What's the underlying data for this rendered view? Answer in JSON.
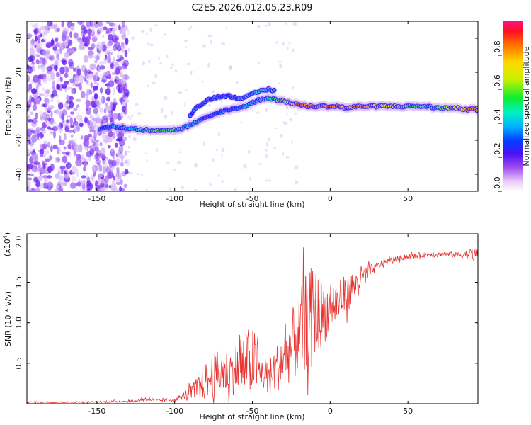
{
  "chart_data": [
    {
      "type": "heatmap",
      "title": "C2E5.2026.012.05.23.R09",
      "xlabel": "Height of straight line (km)",
      "ylabel": "Frequency (Hz)",
      "xlim": [
        -195,
        95
      ],
      "ylim": [
        -50,
        50
      ],
      "xticks": [
        -150,
        -100,
        -50,
        0,
        50
      ],
      "yticks": [
        -40,
        -20,
        0,
        20,
        40
      ],
      "colorbar": {
        "label": "Normalized spectral amplitude",
        "range": [
          0,
          1
        ],
        "ticks": [
          0.0,
          0.2,
          0.4,
          0.6,
          0.8
        ]
      },
      "ridge": {
        "name": "main spectral line",
        "x": [
          -148,
          -140,
          -130,
          -120,
          -110,
          -100,
          -95,
          -90,
          -85,
          -80,
          -75,
          -70,
          -65,
          -60,
          -55,
          -50,
          -45,
          -40,
          -35,
          -30,
          -25,
          -20,
          -15,
          -10,
          -5,
          0,
          5,
          10,
          20,
          30,
          40,
          50,
          60,
          70,
          80,
          90,
          95
        ],
        "y": [
          -13,
          -12,
          -13,
          -14,
          -14,
          -14,
          -13,
          -11,
          -9,
          -7,
          -5,
          -3,
          -2,
          -1,
          0,
          2,
          4,
          5,
          4,
          3,
          2,
          1,
          0,
          0,
          0,
          0,
          0,
          -1,
          0,
          0,
          0,
          0,
          0,
          -1,
          -1,
          -2,
          -2
        ],
        "amplitude": [
          0.3,
          0.35,
          0.4,
          0.5,
          0.55,
          0.5,
          0.45,
          0.35,
          0.35,
          0.3,
          0.3,
          0.3,
          0.3,
          0.3,
          0.35,
          0.35,
          0.4,
          0.45,
          0.55,
          0.65,
          0.75,
          0.85,
          0.9,
          0.9,
          0.85,
          0.9,
          0.85,
          0.8,
          0.85,
          0.75,
          0.65,
          0.55,
          0.5,
          0.55,
          0.65,
          0.85,
          0.8
        ]
      },
      "secondary_branch": {
        "name": "upper branch",
        "x": [
          -90,
          -85,
          -80,
          -75,
          -70,
          -65,
          -60,
          -55,
          -50,
          -45,
          -40,
          -35
        ],
        "y": [
          -5,
          0,
          3,
          5,
          6,
          6,
          5,
          5,
          7,
          9,
          10,
          9
        ],
        "amplitude": [
          0.3,
          0.3,
          0.3,
          0.3,
          0.3,
          0.3,
          0.3,
          0.35,
          0.4,
          0.45,
          0.4,
          0.35
        ]
      }
    },
    {
      "type": "line",
      "xlabel": "Height of straight line (km)",
      "ylabel": "SNR (10 * v/v)",
      "y_multiplier": "(x10",
      "y_multiplier_exp": "4",
      "xlim": [
        -195,
        95
      ],
      "ylim": [
        0,
        2.1
      ],
      "xticks": [
        -150,
        -100,
        -50,
        0,
        50
      ],
      "yticks": [
        0.5,
        1.0,
        1.5,
        2.0
      ],
      "color": "#e8322e",
      "series": [
        {
          "name": "SNR",
          "x": [
            -195,
            -150,
            -130,
            -125,
            -120,
            -110,
            -100,
            -95,
            -90,
            -85,
            -80,
            -75,
            -70,
            -65,
            -60,
            -55,
            -50,
            -45,
            -40,
            -35,
            -30,
            -25,
            -20,
            -15,
            -10,
            -5,
            0,
            5,
            10,
            15,
            20,
            25,
            30,
            35,
            40,
            45,
            50,
            55,
            60,
            65,
            70,
            75,
            80,
            85,
            90,
            95
          ],
          "values": [
            0.02,
            0.02,
            0.03,
            0.03,
            0.06,
            0.04,
            0.05,
            0.09,
            0.14,
            0.2,
            0.28,
            0.35,
            0.4,
            0.38,
            0.45,
            0.48,
            0.55,
            0.4,
            0.32,
            0.42,
            0.58,
            0.7,
            0.85,
            1.05,
            1.15,
            1.1,
            1.2,
            1.25,
            1.35,
            1.45,
            1.55,
            1.62,
            1.7,
            1.75,
            1.78,
            1.8,
            1.82,
            1.83,
            1.84,
            1.85,
            1.85,
            1.85,
            1.84,
            1.84,
            1.85,
            1.85
          ],
          "spread": [
            0.01,
            0.01,
            0.02,
            0.02,
            0.03,
            0.02,
            0.03,
            0.05,
            0.1,
            0.2,
            0.3,
            0.35,
            0.35,
            0.35,
            0.4,
            0.5,
            0.55,
            0.3,
            0.25,
            0.35,
            0.45,
            0.55,
            0.65,
            0.75,
            0.7,
            0.5,
            0.4,
            0.35,
            0.3,
            0.25,
            0.2,
            0.12,
            0.06,
            0.05,
            0.04,
            0.04,
            0.04,
            0.04,
            0.04,
            0.04,
            0.04,
            0.04,
            0.04,
            0.05,
            0.08,
            0.12
          ]
        }
      ]
    }
  ]
}
